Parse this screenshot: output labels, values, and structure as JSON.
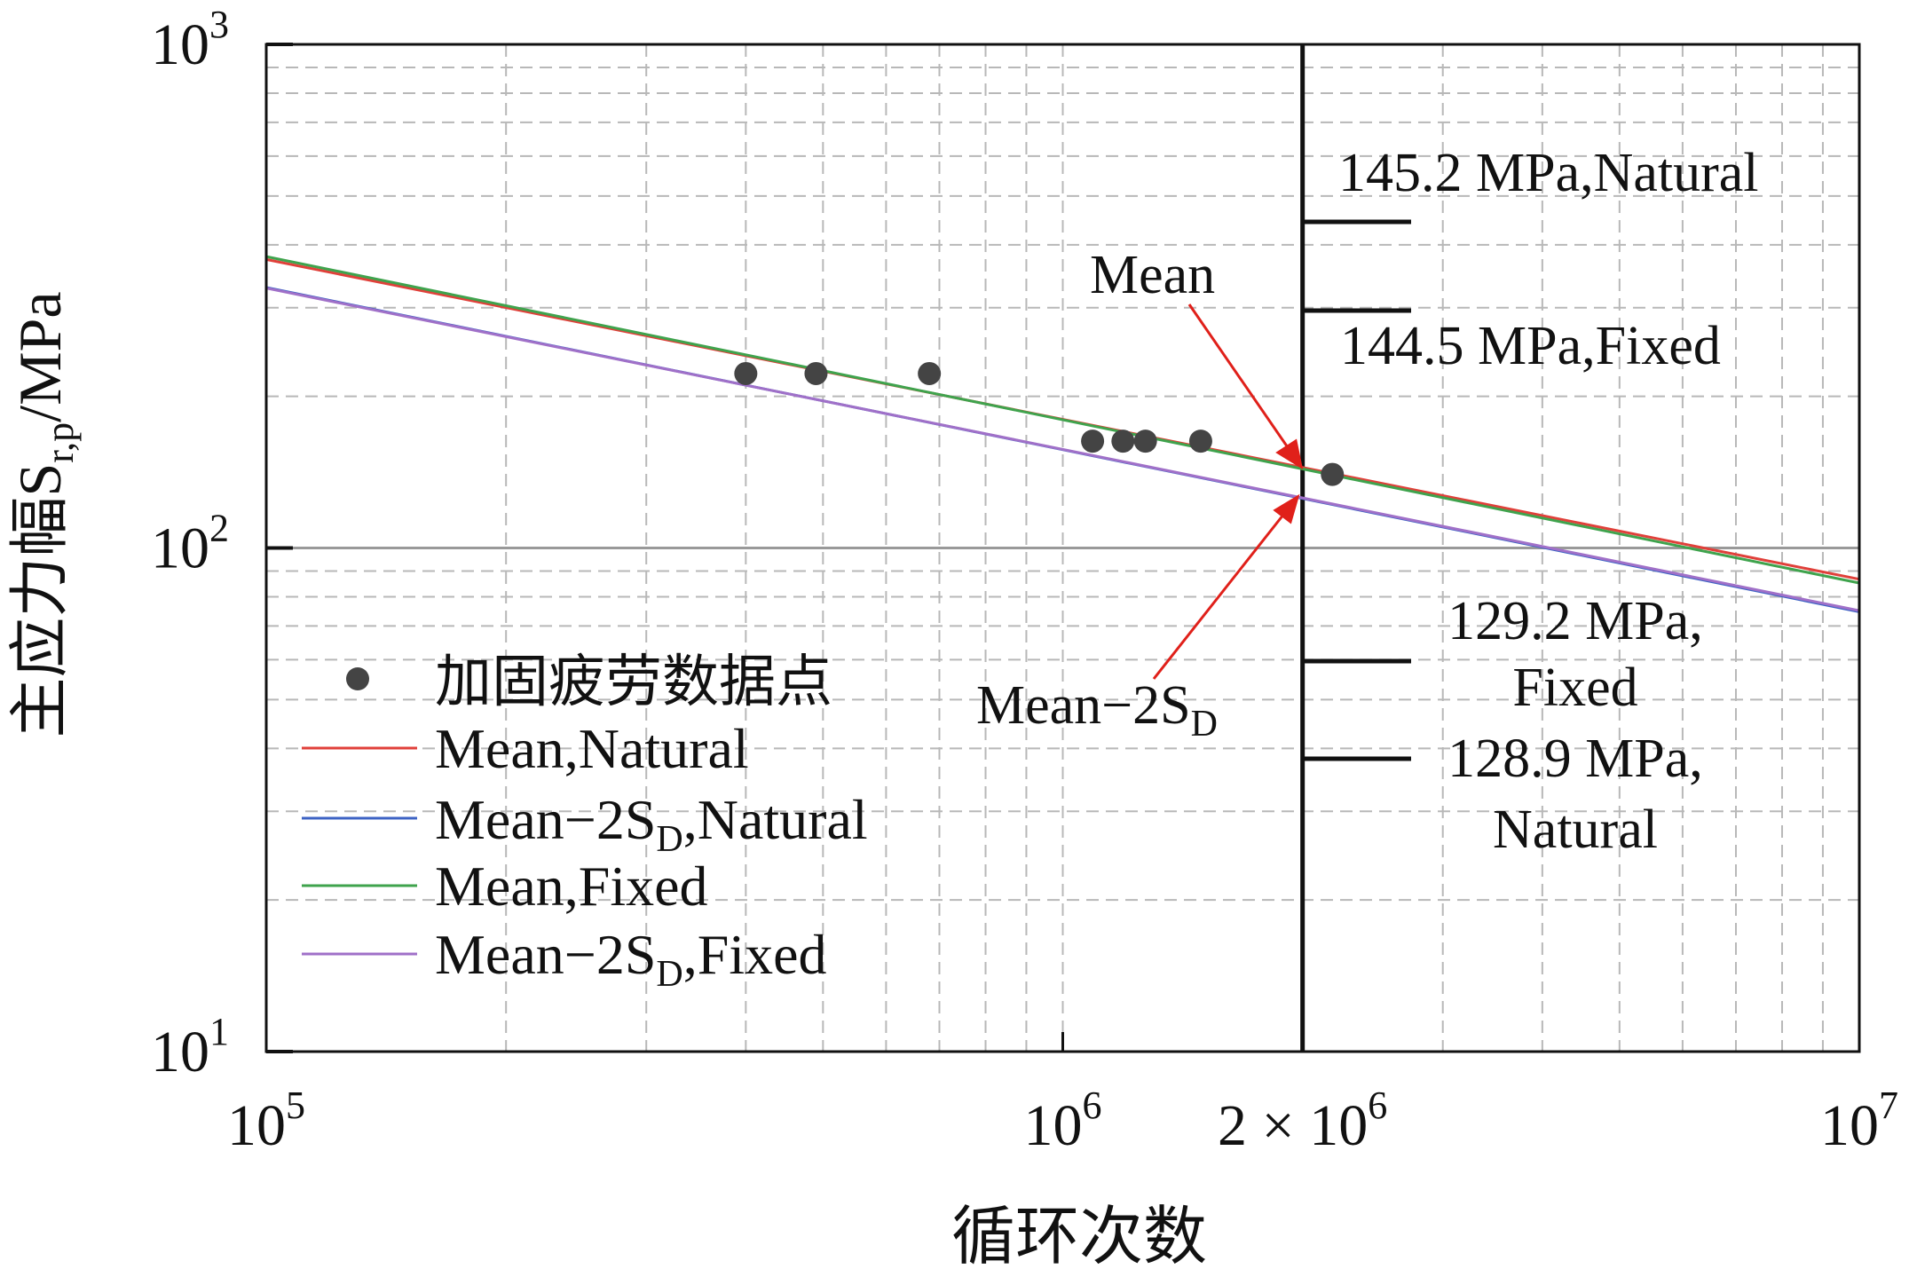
{
  "chart_data": {
    "type": "scatter",
    "xlabel": "循环次数",
    "ylabel_main": "主应力幅S",
    "ylabel_sub": "r,p",
    "ylabel_tail": "/MPa",
    "x_scale": "log",
    "y_scale": "log",
    "xlim": [
      100000,
      10000000
    ],
    "ylim": [
      10,
      1000
    ],
    "x_ticks": [
      {
        "value": 100000,
        "base": "10",
        "exp": "5"
      },
      {
        "value": 1000000,
        "base": "10",
        "exp": "6"
      },
      {
        "value": 2000000,
        "base": "2 × 10",
        "exp": "6"
      },
      {
        "value": 10000000,
        "base": "10",
        "exp": "7"
      }
    ],
    "y_ticks": [
      {
        "value": 10,
        "base": "10",
        "exp": "1"
      },
      {
        "value": 100,
        "base": "10",
        "exp": "2"
      },
      {
        "value": 1000,
        "base": "10",
        "exp": "3"
      }
    ],
    "grid": true,
    "reference_line_x": 2000000,
    "points_series": {
      "name": "加固疲劳数据点",
      "color": "#444444",
      "points": [
        {
          "x": 400000,
          "y": 222
        },
        {
          "x": 490000,
          "y": 222
        },
        {
          "x": 680000,
          "y": 222
        },
        {
          "x": 1090000,
          "y": 163
        },
        {
          "x": 1190000,
          "y": 163
        },
        {
          "x": 1270000,
          "y": 163
        },
        {
          "x": 1490000,
          "y": 163
        },
        {
          "x": 2180000,
          "y": 140
        }
      ]
    },
    "series": [
      {
        "name": "Mean,Natural",
        "color": "#e0403a",
        "x": [
          100000,
          10000000
        ],
        "y": [
          374,
          86.7
        ]
      },
      {
        "name": "Mean-2SD,Natural",
        "color": "#3d63c4",
        "x": [
          100000,
          10000000
        ],
        "y": [
          329,
          74.7
        ]
      },
      {
        "name": "Mean,Fixed",
        "color": "#3fa34d",
        "x": [
          100000,
          10000000
        ],
        "y": [
          379,
          85.2
        ]
      },
      {
        "name": "Mean-2SD,Fixed",
        "color": "#a070c8",
        "x": [
          100000,
          10000000
        ],
        "y": [
          328,
          75.1
        ]
      }
    ],
    "legend_placement": "lower-left",
    "legend_labels": [
      {
        "main": "加固疲劳数据点",
        "sub": "",
        "tail": ""
      },
      {
        "main": "Mean,Natural",
        "sub": "",
        "tail": ""
      },
      {
        "main": "Mean−2S",
        "sub": "D",
        "tail": ",Natural"
      },
      {
        "main": "Mean,Fixed",
        "sub": "",
        "tail": ""
      },
      {
        "main": "Mean−2S",
        "sub": "D",
        "tail": ",Fixed"
      }
    ],
    "annotations": {
      "mean_label": "Mean",
      "sd_label_main": "Mean−2S",
      "sd_label_sub": "D",
      "value_145_2": "145.2 MPa,Natural",
      "value_144_5": "144.5 MPa,Fixed",
      "value_129_2_line1": "129.2 MPa,",
      "value_129_2_line2": "Fixed",
      "value_128_9_line1": "128.9 MPa,",
      "value_128_9_line2": "Natural"
    }
  }
}
